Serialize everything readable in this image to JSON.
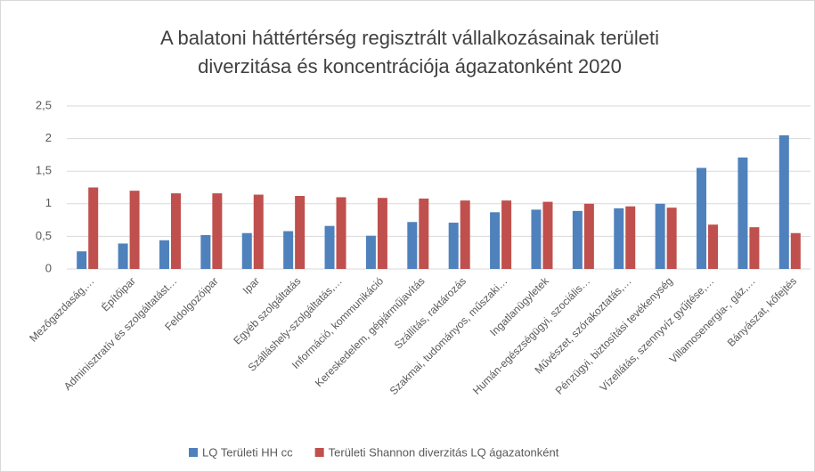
{
  "chart_data": {
    "type": "bar",
    "title": [
      "A balatoni háttértérség regisztrált vállalkozásainak területi",
      "diverzitása és koncentrációja ágazatonként 2020"
    ],
    "categories": [
      "Mezőgazdaság,…",
      "Építőipar",
      "Adminisztratív és szolgáltatást…",
      "Feldolgozóipar",
      "Ipar",
      "Egyéb szolgáltatás",
      "Szálláshely-szolgáltatás,…",
      "Információ, kommunikáció",
      "Kereskedelem, gépjárműjavítás",
      "Szállítás, raktározás",
      "Szakmai, tudományos, műszaki…",
      "Ingatlanügyletek",
      "Humán-egészségügyi, szociális…",
      "Művészet, szórakoztatás,…",
      "Pénzügyi, biztosítási tevékenység",
      "Vízellátás, szennyvíz gyűjtése,…",
      "Villamosenergia-, gáz,…",
      "Bányászat, kőfejtés"
    ],
    "series": [
      {
        "name": "LQ Területi HH cc",
        "color": "#4f81bd",
        "values": [
          0.27,
          0.39,
          0.44,
          0.52,
          0.55,
          0.58,
          0.66,
          0.51,
          0.72,
          0.71,
          0.87,
          0.91,
          0.89,
          0.93,
          1.0,
          1.55,
          1.71,
          2.05
        ]
      },
      {
        "name": "Területi Shannon diverzitás LQ ágazatonként",
        "color": "#c0504d",
        "values": [
          1.25,
          1.2,
          1.16,
          1.16,
          1.14,
          1.12,
          1.1,
          1.09,
          1.08,
          1.05,
          1.05,
          1.03,
          1.0,
          0.96,
          0.94,
          0.68,
          0.64,
          0.55
        ]
      }
    ],
    "ylim": [
      0,
      2.5
    ],
    "yticks": [
      0,
      {
        "value": 0.5,
        "label": "0,5"
      },
      1,
      {
        "value": 1.5,
        "label": "1,5"
      },
      2,
      {
        "value": 2.5,
        "label": "2,5"
      }
    ],
    "legend": "bottom"
  }
}
